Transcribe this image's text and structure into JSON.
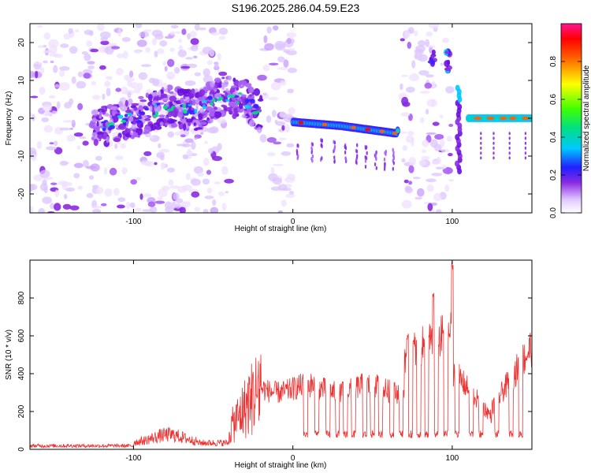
{
  "title": "S196.2025.286.04.59.E23",
  "chart_data": [
    {
      "type": "heatmap",
      "xlabel": "Height of straight line (km)",
      "ylabel": "Frequency (Hz)",
      "xlim": [
        -165,
        150
      ],
      "ylim": [
        -25,
        25
      ],
      "xticks": [
        -100,
        0,
        100
      ],
      "yticks": [
        -20,
        -10,
        0,
        10,
        20
      ],
      "colorbar": {
        "label": "Normalized spectral amplitude",
        "range": [
          0,
          1
        ],
        "ticks": [
          "0.0",
          "0.2",
          "0.4",
          "0.6",
          "0.8"
        ]
      },
      "ridge": [
        {
          "x": -120,
          "y": -2
        },
        {
          "x": -100,
          "y": 0
        },
        {
          "x": -80,
          "y": 3
        },
        {
          "x": -60,
          "y": 2
        },
        {
          "x": -45,
          "y": 6
        },
        {
          "x": -30,
          "y": 5
        },
        {
          "x": -20,
          "y": 1
        },
        {
          "x": 0,
          "y": -1
        },
        {
          "x": 30,
          "y": -2
        },
        {
          "x": 65,
          "y": -4
        },
        {
          "x": 88,
          "y": 16
        },
        {
          "x": 97,
          "y": 15
        },
        {
          "x": 104,
          "y": 7
        },
        {
          "x": 110,
          "y": 0
        },
        {
          "x": 150,
          "y": 0
        }
      ]
    },
    {
      "type": "line",
      "xlabel": "Height of straight line (km)",
      "ylabel": "SNR (10 * v/v)",
      "xlim": [
        -165,
        150
      ],
      "ylim": [
        0,
        1000
      ],
      "xticks": [
        -100,
        0,
        100
      ],
      "yticks": [
        0,
        200,
        400,
        600,
        800
      ],
      "series": [
        {
          "name": "SNR",
          "color": "#ee3333"
        }
      ]
    }
  ]
}
